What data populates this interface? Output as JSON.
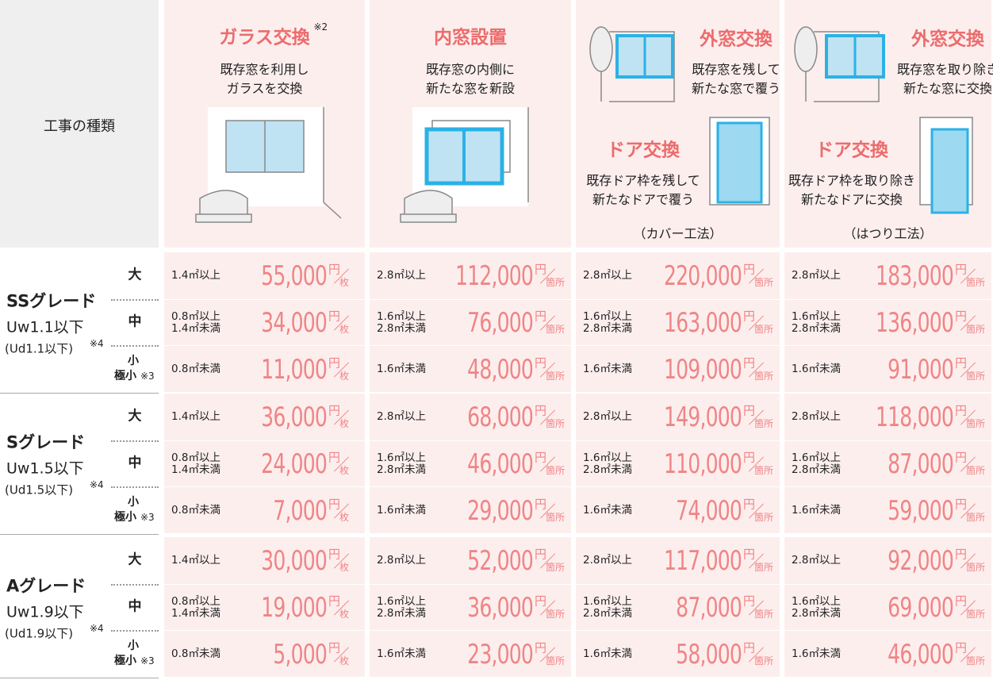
{
  "header": {
    "corner": "工事の種類",
    "columns": [
      {
        "title": "ガラス交換",
        "note": "※2",
        "description": [
          "既存窓を利用し",
          "ガラスを交換"
        ]
      },
      {
        "title": "内窓設置",
        "description": [
          "既存窓の内側に",
          "新たな窓を新設"
        ]
      },
      {
        "title": "外窓交換",
        "description": [
          "既存窓を残して",
          "新たな窓で覆う"
        ],
        "door_title": "ドア交換",
        "door_description": [
          "既存ドア枠を残して",
          "新たなドアで覆う"
        ],
        "method": "（カバー工法）"
      },
      {
        "title": "外窓交換",
        "description": [
          "既存窓を取り除き",
          "新たな窓に交換"
        ],
        "door_title": "ドア交換",
        "door_description": [
          "既存ドア枠を取り除き",
          "新たなドアに交換"
        ],
        "method": "（はつり工法）"
      }
    ]
  },
  "currency": "円",
  "units": [
    "枚",
    "箇所",
    "箇所",
    "箇所"
  ],
  "grades": [
    {
      "name": "SSグレード",
      "uw": "Uw1.1以下",
      "ud": "(Ud1.1以下)",
      "note": "※4",
      "rows": [
        {
          "size": [
            "大"
          ],
          "cells": [
            {
              "area": [
                "1.4㎡以上"
              ],
              "price": "55,000"
            },
            {
              "area": [
                "2.8㎡以上"
              ],
              "price": "112,000"
            },
            {
              "area": [
                "2.8㎡以上"
              ],
              "price": "220,000"
            },
            {
              "area": [
                "2.8㎡以上"
              ],
              "price": "183,000"
            }
          ]
        },
        {
          "size": [
            "中"
          ],
          "cells": [
            {
              "area": [
                "0.8㎡以上",
                "1.4㎡未満"
              ],
              "price": "34,000"
            },
            {
              "area": [
                "1.6㎡以上",
                "2.8㎡未満"
              ],
              "price": "76,000"
            },
            {
              "area": [
                "1.6㎡以上",
                "2.8㎡未満"
              ],
              "price": "163,000"
            },
            {
              "area": [
                "1.6㎡以上",
                "2.8㎡未満"
              ],
              "price": "136,000"
            }
          ]
        },
        {
          "size": [
            "小",
            "極小"
          ],
          "note": "※3",
          "cells": [
            {
              "area": [
                "0.8㎡未満"
              ],
              "price": "11,000"
            },
            {
              "area": [
                "1.6㎡未満"
              ],
              "price": "48,000"
            },
            {
              "area": [
                "1.6㎡未満"
              ],
              "price": "109,000"
            },
            {
              "area": [
                "1.6㎡未満"
              ],
              "price": "91,000"
            }
          ]
        }
      ]
    },
    {
      "name": "Sグレード",
      "uw": "Uw1.5以下",
      "ud": "(Ud1.5以下)",
      "note": "※4",
      "rows": [
        {
          "size": [
            "大"
          ],
          "cells": [
            {
              "area": [
                "1.4㎡以上"
              ],
              "price": "36,000"
            },
            {
              "area": [
                "2.8㎡以上"
              ],
              "price": "68,000"
            },
            {
              "area": [
                "2.8㎡以上"
              ],
              "price": "149,000"
            },
            {
              "area": [
                "2.8㎡以上"
              ],
              "price": "118,000"
            }
          ]
        },
        {
          "size": [
            "中"
          ],
          "cells": [
            {
              "area": [
                "0.8㎡以上",
                "1.4㎡未満"
              ],
              "price": "24,000"
            },
            {
              "area": [
                "1.6㎡以上",
                "2.8㎡未満"
              ],
              "price": "46,000"
            },
            {
              "area": [
                "1.6㎡以上",
                "2.8㎡未満"
              ],
              "price": "110,000"
            },
            {
              "area": [
                "1.6㎡以上",
                "2.8㎡未満"
              ],
              "price": "87,000"
            }
          ]
        },
        {
          "size": [
            "小",
            "極小"
          ],
          "note": "※3",
          "cells": [
            {
              "area": [
                "0.8㎡未満"
              ],
              "price": "7,000"
            },
            {
              "area": [
                "1.6㎡未満"
              ],
              "price": "29,000"
            },
            {
              "area": [
                "1.6㎡未満"
              ],
              "price": "74,000"
            },
            {
              "area": [
                "1.6㎡未満"
              ],
              "price": "59,000"
            }
          ]
        }
      ]
    },
    {
      "name": "Aグレード",
      "uw": "Uw1.9以下",
      "ud": "(Ud1.9以下)",
      "note": "※4",
      "rows": [
        {
          "size": [
            "大"
          ],
          "cells": [
            {
              "area": [
                "1.4㎡以上"
              ],
              "price": "30,000"
            },
            {
              "area": [
                "2.8㎡以上"
              ],
              "price": "52,000"
            },
            {
              "area": [
                "2.8㎡以上"
              ],
              "price": "117,000"
            },
            {
              "area": [
                "2.8㎡以上"
              ],
              "price": "92,000"
            }
          ]
        },
        {
          "size": [
            "中"
          ],
          "cells": [
            {
              "area": [
                "0.8㎡以上",
                "1.4㎡未満"
              ],
              "price": "19,000"
            },
            {
              "area": [
                "1.6㎡以上",
                "2.8㎡未満"
              ],
              "price": "36,000"
            },
            {
              "area": [
                "1.6㎡以上",
                "2.8㎡未満"
              ],
              "price": "87,000"
            },
            {
              "area": [
                "1.6㎡以上",
                "2.8㎡未満"
              ],
              "price": "69,000"
            }
          ]
        },
        {
          "size": [
            "小",
            "極小"
          ],
          "note": "※3",
          "cells": [
            {
              "area": [
                "0.8㎡未満"
              ],
              "price": "5,000"
            },
            {
              "area": [
                "1.6㎡未満"
              ],
              "price": "23,000"
            },
            {
              "area": [
                "1.6㎡未満"
              ],
              "price": "58,000"
            },
            {
              "area": [
                "1.6㎡未満"
              ],
              "price": "46,000"
            }
          ]
        }
      ]
    }
  ]
}
